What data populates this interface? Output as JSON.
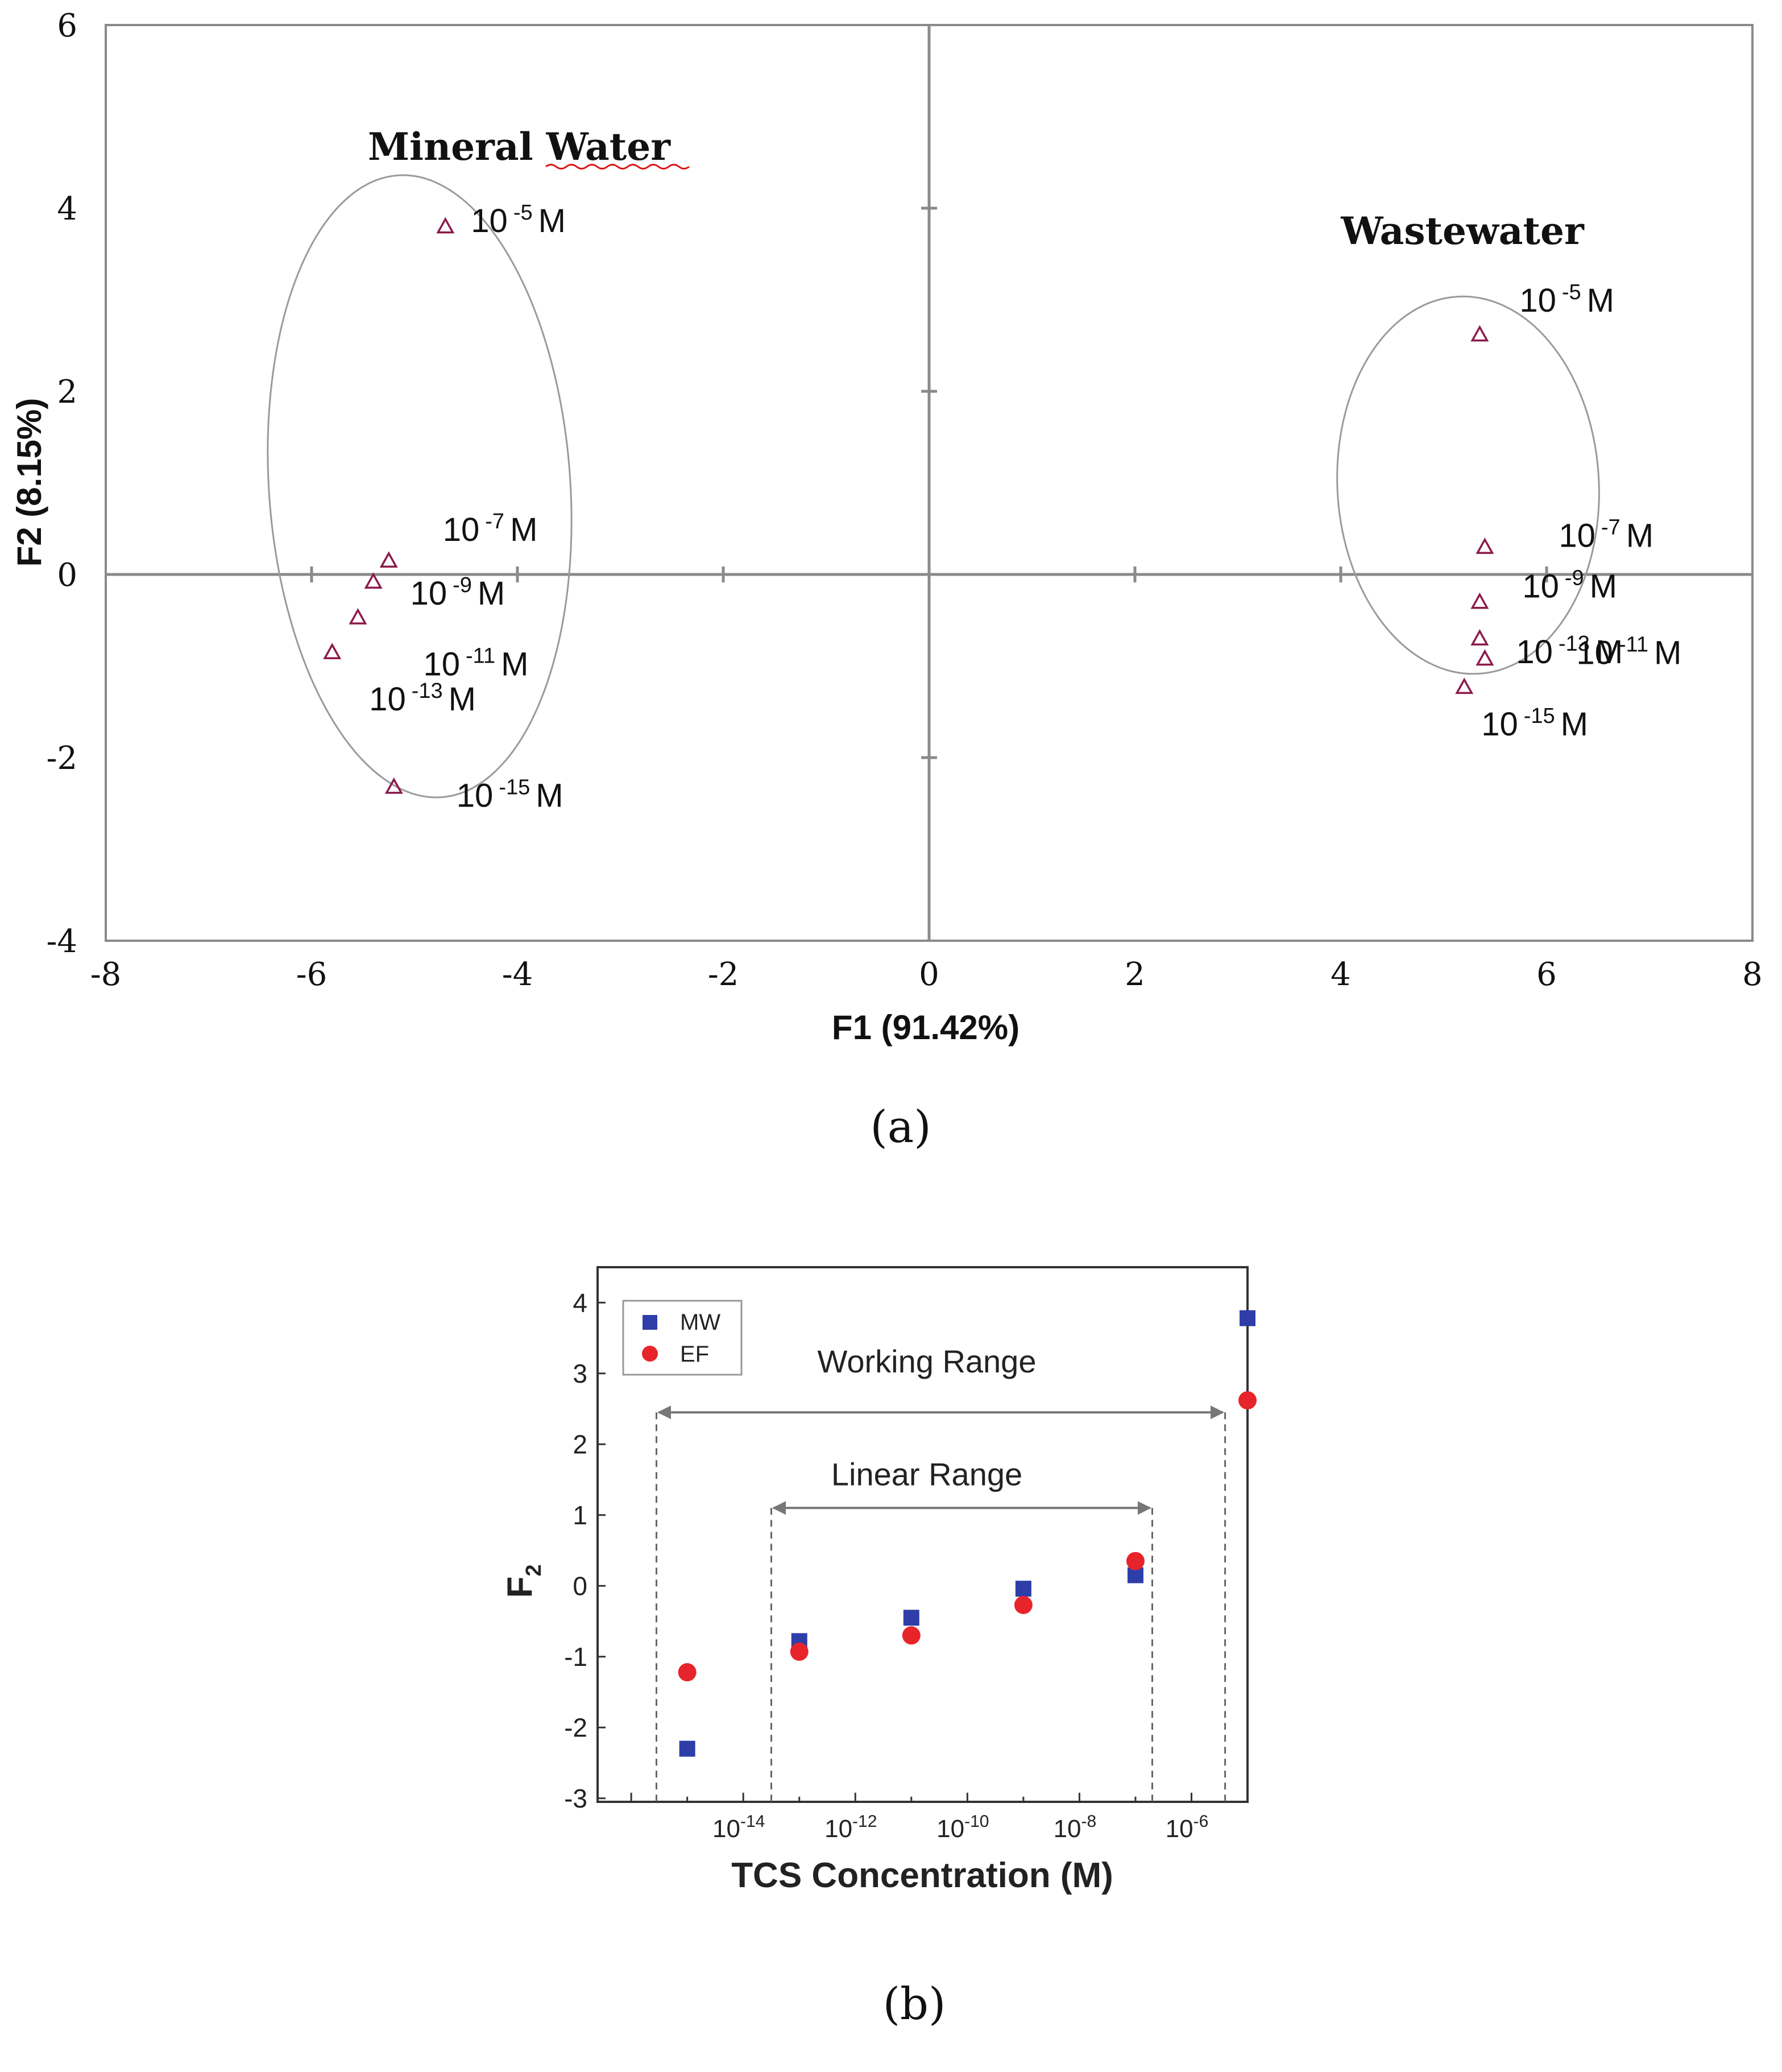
{
  "chart_data": [
    {
      "type": "scatter",
      "panel": "a",
      "caption": "(a)",
      "xlabel": "F1 (91.42%)",
      "ylabel": "F2 (8.15%)",
      "xlim": [
        -8,
        8
      ],
      "ylim": [
        -4,
        6
      ],
      "x_ticks": [
        "-8",
        "-6",
        "-4",
        "-2",
        "0",
        "2",
        "4",
        "6",
        "8"
      ],
      "y_ticks": [
        "6",
        "4",
        "2",
        "0",
        "-2",
        "-4"
      ],
      "marker_color": "#8b1a4a",
      "groups": [
        {
          "name": "Mineral Water",
          "points": [
            {
              "label_base": "10",
              "label_exp": "-5",
              "label_unit": "M",
              "x": -4.7,
              "y": 3.8
            },
            {
              "label_base": "10",
              "label_exp": "-7",
              "label_unit": "M",
              "x": -5.25,
              "y": 0.15
            },
            {
              "label_base": "10",
              "label_exp": "-9",
              "label_unit": "M",
              "x": -5.4,
              "y": -0.08
            },
            {
              "label_base": "10",
              "label_exp": "-11",
              "label_unit": "M",
              "x": -5.55,
              "y": -0.47
            },
            {
              "label_base": "10",
              "label_exp": "-13",
              "label_unit": "M",
              "x": -5.8,
              "y": -0.85
            },
            {
              "label_base": "10",
              "label_exp": "-15",
              "label_unit": "M",
              "x": -5.2,
              "y": -2.32
            }
          ]
        },
        {
          "name": "Wastewater",
          "points": [
            {
              "label_base": "10",
              "label_exp": "-5",
              "label_unit": "M",
              "x": 5.35,
              "y": 2.62
            },
            {
              "label_base": "10",
              "label_exp": "-7",
              "label_unit": "M",
              "x": 5.4,
              "y": 0.3
            },
            {
              "label_base": "10",
              "label_exp": "-9",
              "label_unit": "M",
              "x": 5.35,
              "y": -0.3
            },
            {
              "label_base": "10",
              "label_exp": "-11",
              "label_unit": "M",
              "x": 5.35,
              "y": -0.7
            },
            {
              "label_base": "10",
              "label_exp": "-13",
              "label_unit": "M",
              "x": 5.4,
              "y": -0.92
            },
            {
              "label_base": "10",
              "label_exp": "-15",
              "label_unit": "M",
              "x": 5.2,
              "y": -1.23
            }
          ]
        }
      ]
    },
    {
      "type": "scatter",
      "panel": "b",
      "caption": "(b)",
      "xlabel": "TCS Concentration (M)",
      "ylabel_base": "F",
      "ylabel_sub": "2",
      "x_scale": "log",
      "xlim_exp": [
        -16.6,
        -5.0
      ],
      "ylim": [
        -3.05,
        4.5
      ],
      "x_tick_base": "10",
      "x_tick_exps": [
        "-14",
        "-12",
        "-10",
        "-8",
        "-6"
      ],
      "y_ticks": [
        "4",
        "3",
        "2",
        "1",
        "0",
        "-1",
        "-2",
        "-3"
      ],
      "legend_position": "top-left",
      "series": [
        {
          "name": "MW",
          "marker": "square",
          "color": "#2e3ea8",
          "x_exp": [
            -15,
            -13,
            -11,
            -9,
            -7,
            -5
          ],
          "y": [
            -2.3,
            -0.78,
            -0.45,
            -0.04,
            0.15,
            3.78
          ]
        },
        {
          "name": "EF",
          "marker": "circle",
          "color": "#e8242b",
          "x_exp": [
            -15,
            -13,
            -11,
            -9,
            -7,
            -5
          ],
          "y": [
            -1.22,
            -0.93,
            -0.7,
            -0.27,
            0.35,
            2.62
          ]
        }
      ],
      "annotations": {
        "working_range": {
          "label": "Working Range",
          "from_exp": -15.55,
          "to_exp": -5.4,
          "level": 2.45
        },
        "linear_range": {
          "label": "Linear Range",
          "from_exp": -13.5,
          "to_exp": -6.7,
          "level": 1.1
        }
      }
    }
  ]
}
